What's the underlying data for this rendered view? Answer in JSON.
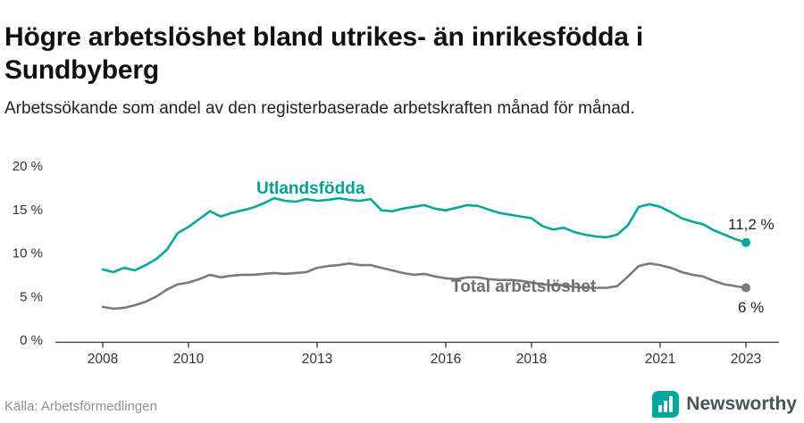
{
  "title": "Högre arbetslöshet bland utrikes- än inrikesfödda i Sundbyberg",
  "subtitle": "Arbetssökande som andel av den registerbaserade arbetskraften månad för månad.",
  "source": "Källa: Arbetsförmedlingen",
  "logo": {
    "text": "Newsworthy",
    "icon": "bar-chart-badge-icon",
    "color": "#00a79b"
  },
  "chart_data": {
    "type": "line",
    "title": "Högre arbetslöshet bland utrikes- än inrikesfödda i Sundbyberg",
    "xlabel": "",
    "ylabel": "Arbetssökande som andel av den registerbaserade arbetskraften",
    "grid": false,
    "legend": "inline-labels",
    "xlim": [
      2007.6,
      2023.6
    ],
    "ylim": [
      0,
      20
    ],
    "xticks": [
      2008,
      2010,
      2013,
      2016,
      2018,
      2021,
      2023
    ],
    "xtick_labels": [
      "2008",
      "2010",
      "2013",
      "2016",
      "2018",
      "2021",
      "2023"
    ],
    "yticks": [
      0,
      5,
      10,
      15,
      20
    ],
    "ytick_labels": [
      "0 %",
      "5 %",
      "10 %",
      "15 %",
      "20 %"
    ],
    "x": [
      2008,
      2008.25,
      2008.5,
      2008.75,
      2009,
      2009.25,
      2009.5,
      2009.75,
      2010,
      2010.25,
      2010.5,
      2010.75,
      2011,
      2011.25,
      2011.5,
      2011.75,
      2012,
      2012.25,
      2012.5,
      2012.75,
      2013,
      2013.25,
      2013.5,
      2013.75,
      2014,
      2014.25,
      2014.5,
      2014.75,
      2015,
      2015.25,
      2015.5,
      2015.75,
      2016,
      2016.25,
      2016.5,
      2016.75,
      2017,
      2017.25,
      2017.5,
      2017.75,
      2018,
      2018.25,
      2018.5,
      2018.75,
      2019,
      2019.25,
      2019.5,
      2019.75,
      2020,
      2020.25,
      2020.5,
      2020.75,
      2021,
      2021.25,
      2021.5,
      2021.75,
      2022,
      2022.25,
      2022.5,
      2022.75,
      2023
    ],
    "series": [
      {
        "name": "Utlandsfödda",
        "color": "#00a79b",
        "end_label": "11,2 %",
        "end_value": 11.2,
        "values": [
          8.1,
          7.8,
          8.3,
          8.0,
          8.6,
          9.3,
          10.4,
          12.3,
          13.0,
          13.9,
          14.8,
          14.2,
          14.6,
          14.9,
          15.2,
          15.7,
          16.3,
          16.0,
          15.9,
          16.2,
          16.0,
          16.1,
          16.3,
          16.1,
          16.0,
          16.2,
          14.9,
          14.8,
          15.1,
          15.3,
          15.5,
          15.1,
          14.9,
          15.2,
          15.5,
          15.4,
          15.0,
          14.6,
          14.4,
          14.2,
          14.0,
          13.1,
          12.7,
          12.9,
          12.4,
          12.1,
          11.9,
          11.8,
          12.1,
          13.2,
          15.3,
          15.6,
          15.3,
          14.7,
          14.0,
          13.6,
          13.3,
          12.6,
          12.1,
          11.6,
          11.2
        ]
      },
      {
        "name": "Total arbetslöshet",
        "color": "#7a7a7a",
        "end_label": "6 %",
        "end_value": 6.0,
        "values": [
          3.8,
          3.6,
          3.7,
          4.0,
          4.4,
          5.0,
          5.8,
          6.4,
          6.6,
          7.0,
          7.5,
          7.2,
          7.4,
          7.5,
          7.5,
          7.6,
          7.7,
          7.6,
          7.7,
          7.8,
          8.3,
          8.5,
          8.6,
          8.8,
          8.6,
          8.6,
          8.3,
          8.0,
          7.7,
          7.5,
          7.6,
          7.3,
          7.1,
          7.0,
          7.2,
          7.2,
          7.0,
          6.9,
          6.9,
          6.8,
          6.6,
          6.4,
          6.3,
          6.3,
          6.1,
          6.0,
          6.0,
          6.0,
          6.2,
          7.3,
          8.5,
          8.8,
          8.6,
          8.3,
          7.8,
          7.5,
          7.3,
          6.8,
          6.4,
          6.2,
          6.0
        ]
      }
    ]
  }
}
